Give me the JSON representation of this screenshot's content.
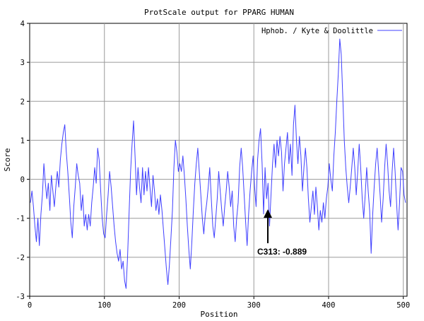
{
  "chart_data": {
    "type": "line",
    "title": "ProtScale output for PPARG HUMAN",
    "xlabel": "Position",
    "ylabel": "Score",
    "xlim": [
      0,
      505
    ],
    "ylim": [
      -3,
      4
    ],
    "x_ticks": [
      "0",
      "100",
      "200",
      "300",
      "400",
      "500"
    ],
    "y_ticks": [
      "4",
      "3",
      "2",
      "1",
      "0",
      "-1",
      "-2",
      "-3"
    ],
    "grid": true,
    "legend": {
      "position": "top-right"
    },
    "series": [
      {
        "name": "Hphob. / Kyte & Doolittle",
        "color": "#4040ff",
        "points": [
          [
            1,
            -0.6
          ],
          [
            3,
            -0.3
          ],
          [
            5,
            -0.7
          ],
          [
            7,
            -1.2
          ],
          [
            9,
            -1.6
          ],
          [
            11,
            -1.0
          ],
          [
            13,
            -1.7
          ],
          [
            15,
            -0.9
          ],
          [
            17,
            -0.4
          ],
          [
            19,
            0.4
          ],
          [
            21,
            -0.1
          ],
          [
            23,
            -0.5
          ],
          [
            25,
            -0.1
          ],
          [
            27,
            -0.8
          ],
          [
            29,
            0.1
          ],
          [
            31,
            -0.3
          ],
          [
            33,
            -0.7
          ],
          [
            35,
            -0.2
          ],
          [
            37,
            0.2
          ],
          [
            39,
            -0.2
          ],
          [
            41,
            0.5
          ],
          [
            43,
            0.9
          ],
          [
            45,
            1.2
          ],
          [
            47,
            1.4
          ],
          [
            49,
            0.7
          ],
          [
            51,
            0.2
          ],
          [
            53,
            -0.4
          ],
          [
            55,
            -1.1
          ],
          [
            57,
            -1.5
          ],
          [
            59,
            -0.7
          ],
          [
            61,
            -0.2
          ],
          [
            63,
            0.4
          ],
          [
            65,
            0.1
          ],
          [
            67,
            -0.1
          ],
          [
            69,
            -0.8
          ],
          [
            71,
            -0.4
          ],
          [
            73,
            -1.2
          ],
          [
            75,
            -0.9
          ],
          [
            77,
            -1.3
          ],
          [
            79,
            -0.9
          ],
          [
            81,
            -1.2
          ],
          [
            83,
            -0.6
          ],
          [
            85,
            -0.2
          ],
          [
            87,
            0.3
          ],
          [
            89,
            -0.1
          ],
          [
            91,
            0.8
          ],
          [
            93,
            0.5
          ],
          [
            95,
            -0.3
          ],
          [
            97,
            -1.0
          ],
          [
            99,
            -1.4
          ],
          [
            101,
            -1.5
          ],
          [
            103,
            -0.9
          ],
          [
            105,
            -0.4
          ],
          [
            107,
            0.2
          ],
          [
            109,
            -0.2
          ],
          [
            111,
            -0.7
          ],
          [
            113,
            -1.2
          ],
          [
            115,
            -1.6
          ],
          [
            117,
            -1.9
          ],
          [
            119,
            -2.1
          ],
          [
            121,
            -1.8
          ],
          [
            123,
            -2.3
          ],
          [
            125,
            -2.1
          ],
          [
            127,
            -2.6
          ],
          [
            129,
            -2.8
          ],
          [
            131,
            -2.0
          ],
          [
            133,
            -0.9
          ],
          [
            135,
            0.2
          ],
          [
            137,
            0.9
          ],
          [
            139,
            1.5
          ],
          [
            141,
            0.6
          ],
          [
            143,
            -0.4
          ],
          [
            145,
            0.3
          ],
          [
            147,
            -0.2
          ],
          [
            149,
            -0.6
          ],
          [
            151,
            0.3
          ],
          [
            153,
            -0.4
          ],
          [
            155,
            0.2
          ],
          [
            157,
            -0.3
          ],
          [
            159,
            0.3
          ],
          [
            161,
            -0.2
          ],
          [
            163,
            -0.7
          ],
          [
            165,
            0.1
          ],
          [
            167,
            -0.3
          ],
          [
            169,
            -0.8
          ],
          [
            171,
            -0.5
          ],
          [
            173,
            -0.9
          ],
          [
            175,
            -0.4
          ],
          [
            177,
            -0.8
          ],
          [
            179,
            -1.3
          ],
          [
            181,
            -1.8
          ],
          [
            183,
            -2.3
          ],
          [
            185,
            -2.7
          ],
          [
            187,
            -2.2
          ],
          [
            189,
            -1.5
          ],
          [
            191,
            -0.8
          ],
          [
            193,
            0.3
          ],
          [
            195,
            1.0
          ],
          [
            197,
            0.7
          ],
          [
            199,
            0.2
          ],
          [
            201,
            0.4
          ],
          [
            203,
            0.2
          ],
          [
            205,
            0.6
          ],
          [
            207,
            0.1
          ],
          [
            209,
            -0.5
          ],
          [
            211,
            -1.2
          ],
          [
            213,
            -1.8
          ],
          [
            215,
            -2.3
          ],
          [
            217,
            -1.6
          ],
          [
            219,
            -0.8
          ],
          [
            221,
            -0.1
          ],
          [
            223,
            0.4
          ],
          [
            225,
            0.8
          ],
          [
            227,
            0.2
          ],
          [
            229,
            -0.4
          ],
          [
            231,
            -1.0
          ],
          [
            233,
            -1.4
          ],
          [
            235,
            -0.9
          ],
          [
            237,
            -0.6
          ],
          [
            239,
            -0.2
          ],
          [
            241,
            0.3
          ],
          [
            243,
            -0.5
          ],
          [
            245,
            -1.2
          ],
          [
            247,
            -1.5
          ],
          [
            249,
            -1.0
          ],
          [
            251,
            -0.5
          ],
          [
            253,
            0.2
          ],
          [
            255,
            -0.3
          ],
          [
            257,
            -0.8
          ],
          [
            259,
            -1.2
          ],
          [
            261,
            -0.7
          ],
          [
            263,
            -0.3
          ],
          [
            265,
            0.2
          ],
          [
            267,
            -0.2
          ],
          [
            269,
            -0.7
          ],
          [
            271,
            -0.3
          ],
          [
            273,
            -1.2
          ],
          [
            275,
            -1.6
          ],
          [
            277,
            -1.0
          ],
          [
            279,
            -0.6
          ],
          [
            281,
            0.3
          ],
          [
            283,
            0.8
          ],
          [
            285,
            0.3
          ],
          [
            287,
            -0.4
          ],
          [
            289,
            -1.1
          ],
          [
            291,
            -1.7
          ],
          [
            293,
            -0.9
          ],
          [
            295,
            -0.3
          ],
          [
            297,
            0.2
          ],
          [
            299,
            0.6
          ],
          [
            301,
            -0.2
          ],
          [
            303,
            -0.7
          ],
          [
            305,
            0.5
          ],
          [
            307,
            1.0
          ],
          [
            309,
            1.3
          ],
          [
            311,
            0.4
          ],
          [
            313,
            -0.889
          ],
          [
            315,
            0.3
          ],
          [
            317,
            -0.5
          ],
          [
            319,
            -0.1
          ],
          [
            321,
            -1.2
          ],
          [
            323,
            -0.4
          ],
          [
            325,
            0.4
          ],
          [
            327,
            0.9
          ],
          [
            329,
            0.3
          ],
          [
            331,
            1.0
          ],
          [
            333,
            0.6
          ],
          [
            335,
            1.1
          ],
          [
            337,
            0.7
          ],
          [
            339,
            -0.3
          ],
          [
            341,
            0.4
          ],
          [
            343,
            0.8
          ],
          [
            345,
            1.2
          ],
          [
            347,
            0.4
          ],
          [
            349,
            0.9
          ],
          [
            351,
            0.1
          ],
          [
            353,
            1.4
          ],
          [
            355,
            1.9
          ],
          [
            357,
            1.0
          ],
          [
            359,
            0.4
          ],
          [
            361,
            1.1
          ],
          [
            363,
            0.6
          ],
          [
            365,
            -0.3
          ],
          [
            367,
            0.3
          ],
          [
            369,
            0.8
          ],
          [
            371,
            0.3
          ],
          [
            373,
            -0.5
          ],
          [
            375,
            -1.1
          ],
          [
            377,
            -0.7
          ],
          [
            379,
            -0.3
          ],
          [
            381,
            -0.9
          ],
          [
            383,
            -0.2
          ],
          [
            385,
            -0.7
          ],
          [
            387,
            -1.3
          ],
          [
            389,
            -0.8
          ],
          [
            391,
            -1.1
          ],
          [
            393,
            -0.6
          ],
          [
            395,
            -1.0
          ],
          [
            397,
            -0.5
          ],
          [
            399,
            -0.2
          ],
          [
            401,
            0.4
          ],
          [
            403,
            0.0
          ],
          [
            405,
            -0.3
          ],
          [
            407,
            0.6
          ],
          [
            409,
            1.2
          ],
          [
            411,
            2.0
          ],
          [
            413,
            2.7
          ],
          [
            415,
            3.6
          ],
          [
            417,
            3.2
          ],
          [
            419,
            2.1
          ],
          [
            421,
            1.0
          ],
          [
            423,
            0.3
          ],
          [
            425,
            -0.2
          ],
          [
            427,
            -0.6
          ],
          [
            429,
            -0.2
          ],
          [
            431,
            0.3
          ],
          [
            433,
            0.8
          ],
          [
            435,
            0.3
          ],
          [
            437,
            -0.4
          ],
          [
            439,
            0.2
          ],
          [
            441,
            0.9
          ],
          [
            443,
            0.3
          ],
          [
            445,
            -0.5
          ],
          [
            447,
            -1.0
          ],
          [
            449,
            -0.4
          ],
          [
            451,
            0.3
          ],
          [
            453,
            -0.3
          ],
          [
            455,
            -0.8
          ],
          [
            457,
            -1.9
          ],
          [
            459,
            -0.9
          ],
          [
            461,
            -0.2
          ],
          [
            463,
            0.4
          ],
          [
            465,
            0.8
          ],
          [
            467,
            0.2
          ],
          [
            469,
            -0.4
          ],
          [
            471,
            -1.1
          ],
          [
            473,
            -0.5
          ],
          [
            475,
            0.3
          ],
          [
            477,
            0.9
          ],
          [
            479,
            0.4
          ],
          [
            481,
            -0.3
          ],
          [
            483,
            -0.7
          ],
          [
            485,
            0.2
          ],
          [
            487,
            0.8
          ],
          [
            489,
            0.2
          ],
          [
            491,
            -0.6
          ],
          [
            493,
            -1.3
          ],
          [
            495,
            -0.6
          ],
          [
            497,
            0.3
          ],
          [
            499,
            0.2
          ],
          [
            501,
            -0.4
          ],
          [
            503,
            -0.6
          ]
        ]
      }
    ],
    "annotations": [
      {
        "text": "C313: -0.889",
        "x": 313,
        "y": -0.889
      }
    ]
  }
}
